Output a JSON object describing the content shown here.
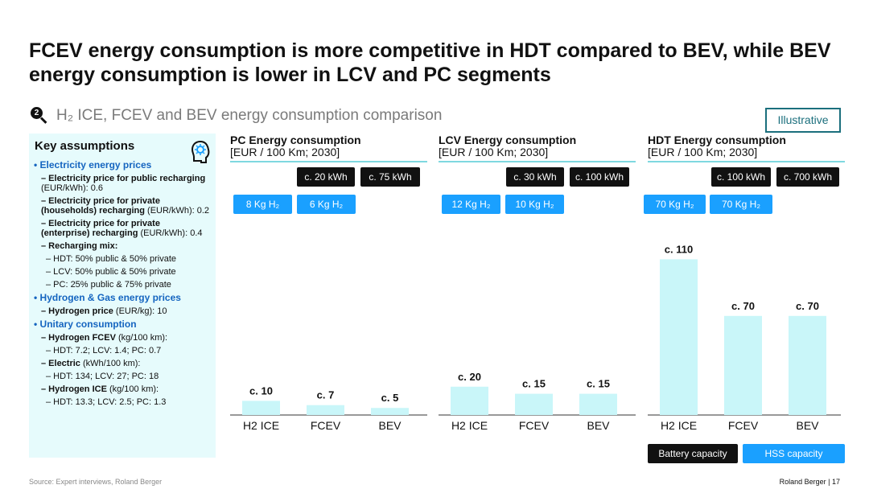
{
  "title": "FCEV energy consumption is more competitive in HDT compared to BEV, while BEV energy consumption is lower in LCV and PC segments",
  "subtitle_number": "2",
  "subtitle": "H₂ ICE, FCEV and BEV energy consumption comparison",
  "illustrative": "Illustrative",
  "assumptions": {
    "title": "Key assumptions",
    "lines": [
      {
        "level": "l0",
        "text": "Electricity energy prices"
      },
      {
        "level": "l1",
        "bold": "– Electricity price for public recharging",
        "text": " (EUR/kWh): 0.6"
      },
      {
        "level": "l1",
        "bold": "– Electricity price for private (households) recharging",
        "text": " (EUR/kWh): 0.2"
      },
      {
        "level": "l1",
        "bold": "– Electricity price for private (enterprise) recharging",
        "text": " (EUR/kWh): 0.4"
      },
      {
        "level": "l1",
        "bold": "– Recharging mix:",
        "text": ""
      },
      {
        "level": "l2",
        "bold": "",
        "text": "– HDT: 50% public & 50% private"
      },
      {
        "level": "l2",
        "bold": "",
        "text": "– LCV: 50% public & 50% private"
      },
      {
        "level": "l2",
        "bold": "",
        "text": "– PC: 25% public & 75% private"
      },
      {
        "level": "l0",
        "text": "Hydrogen & Gas energy prices"
      },
      {
        "level": "l1",
        "bold": "– Hydrogen price",
        "text": " (EUR/kg): 10"
      },
      {
        "level": "l0",
        "text": "Unitary consumption"
      },
      {
        "level": "l1",
        "bold": "– Hydrogen FCEV",
        "text": " (kg/100 km):"
      },
      {
        "level": "l2",
        "bold": "",
        "text": "– HDT: 7.2; LCV: 1.4; PC: 0.7"
      },
      {
        "level": "l1",
        "bold": "– Electric",
        "text": " (kWh/100 km):"
      },
      {
        "level": "l2",
        "bold": "",
        "text": "– HDT: 134; LCV: 27; PC: 18"
      },
      {
        "level": "l1",
        "bold": "– Hydrogen ICE",
        "text": " (kg/100 km):"
      },
      {
        "level": "l2",
        "bold": "",
        "text": "– HDT: 13.3; LCV: 2.5; PC: 1.3"
      }
    ]
  },
  "legend": {
    "battery": "Battery capacity",
    "hss": "HSS capacity"
  },
  "colors": {
    "bar": "#c9f6f9",
    "accent": "#1aa0ff",
    "header_line": "#7fd8e0",
    "panel": "#e6fbfc"
  },
  "chart_data": [
    {
      "type": "bar",
      "title": "PC Energy consumption",
      "unit": "[EUR / 100 Km; 2030]",
      "categories": [
        "H2 ICE",
        "FCEV",
        "BEV"
      ],
      "values": [
        10,
        7,
        5
      ],
      "labels": [
        "c. 10",
        "c. 7",
        "c. 5"
      ],
      "battery_tags": [
        "c. 20 kWh",
        "c. 75 kWh"
      ],
      "hss_tags": [
        "8 Kg H₂",
        "6 Kg H₂"
      ]
    },
    {
      "type": "bar",
      "title": "LCV Energy consumption",
      "unit": "[EUR / 100 Km; 2030]",
      "categories": [
        "H2 ICE",
        "FCEV",
        "BEV"
      ],
      "values": [
        20,
        15,
        15
      ],
      "labels": [
        "c. 20",
        "c. 15",
        "c. 15"
      ],
      "battery_tags": [
        "c. 30 kWh",
        "c. 100 kWh"
      ],
      "hss_tags": [
        "12 Kg H₂",
        "10 Kg H₂"
      ]
    },
    {
      "type": "bar",
      "title": "HDT Energy consumption",
      "unit": "[EUR / 100 Km; 2030]",
      "categories": [
        "H2 ICE",
        "FCEV",
        "BEV"
      ],
      "values": [
        110,
        70,
        70
      ],
      "labels": [
        "c. 110",
        "c. 70",
        "c. 70"
      ],
      "battery_tags": [
        "c. 100 kWh",
        "c. 700 kWh"
      ],
      "hss_tags": [
        "70 Kg H₂",
        "70 Kg H₂"
      ]
    }
  ],
  "footer": {
    "source": "Source: Expert interviews, Roland Berger",
    "brand": "Roland Berger  |  17"
  }
}
